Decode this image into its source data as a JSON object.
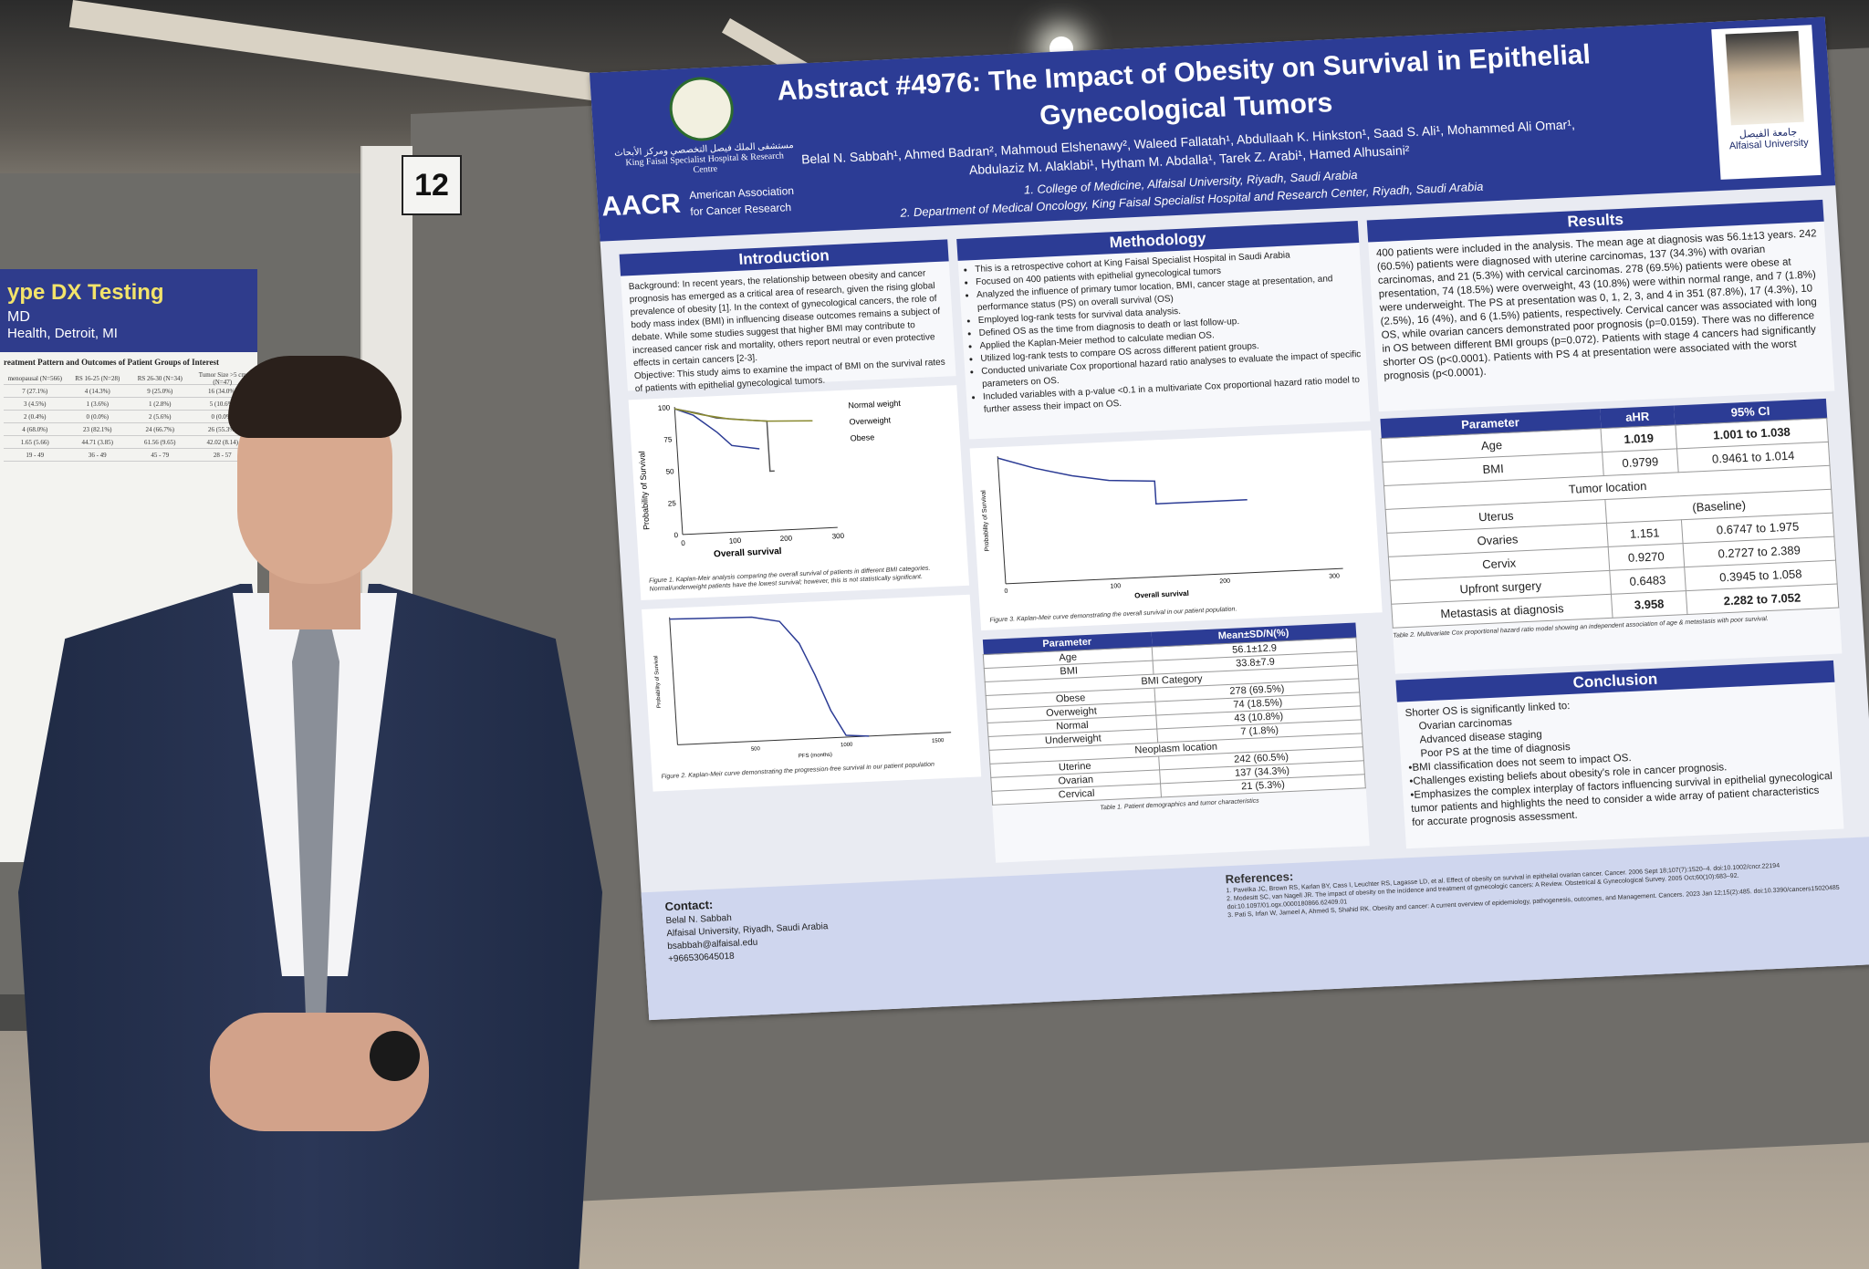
{
  "booth_number": "12",
  "left_poster": {
    "title": "ype DX Testing",
    "line1": "MD",
    "line2": "Health, Detroit, MI",
    "table_title": "reatment Pattern and Outcomes of Patient Groups of Interest",
    "headers": [
      "menopausal (N=566)",
      "RS 16-25 (N=28)",
      "RS 26-30 (N=34)",
      "Tumor Size >5 cm (N=47)"
    ],
    "rows": [
      [
        "7 (27.1%)",
        "4 (14.3%)",
        "9 (25.0%)",
        "16 (34.0%)"
      ],
      [
        "3 (4.5%)",
        "1 (3.6%)",
        "1 (2.8%)",
        "5 (10.6%)"
      ],
      [
        "2 (0.4%)",
        "0 (0.0%)",
        "2 (5.6%)",
        "0 (0.0%)"
      ],
      [
        "4 (68.0%)",
        "23 (82.1%)",
        "24 (66.7%)",
        "26 (55.3%)"
      ],
      [
        "1.65 (5.66)",
        "44.71 (3.85)",
        "61.56 (9.65)",
        "42.02 (8.14)"
      ],
      [
        "19 - 49",
        "36 - 49",
        "45 - 79",
        "28 - 57"
      ]
    ]
  },
  "poster": {
    "title": "Abstract #4976: The Impact of Obesity on Survival in Epithelial Gynecological Tumors",
    "authors": "Belal N. Sabbah¹, Ahmed Badran², Mahmoud Elshenawy², Waleed Fallatah¹, Abdullaah K. Hinkston¹, Saad S. Ali¹, Mohammed Ali Omar¹, Abdulaziz M. Alaklabi¹, Hytham M. Abdalla¹, Tarek Z. Arabi¹, Hamed Alhusaini²",
    "affiliation1": "1. College of Medicine, Alfaisal University, Riyadh, Saudi Arabia",
    "affiliation2": "2. Department of Medical Oncology, King Faisal Specialist Hospital and Research Center, Riyadh, Saudi Arabia",
    "logo_left_arabic": "مستشفى الملك فيصل التخصصي ومركز الأبحاث",
    "logo_left_english": "King Faisal Specialist Hospital & Research Centre",
    "aacr_mark": "AACR",
    "aacr_text1": "American Association",
    "aacr_text2": "for Cancer Research",
    "logo_right_arabic": "جامعة الفيصل",
    "logo_right_english": "Alfaisal University",
    "introduction": {
      "heading": "Introduction",
      "background": "Background: In recent years, the relationship between obesity and cancer prognosis has emerged as a critical area of research, given the rising global prevalence of obesity [1]. In the context of gynecological cancers, the role of body mass index (BMI) in influencing disease outcomes remains a subject of debate. While some studies suggest that higher BMI may contribute to increased cancer risk and mortality, others report neutral or even protective effects in certain cancers [2-3].",
      "objective": "Objective: This study aims to examine the impact of BMI on the survival rates of patients with epithelial gynecological tumors."
    },
    "methodology": {
      "heading": "Methodology",
      "items": [
        "This is a retrospective cohort at King Faisal Specialist Hospital in Saudi Arabia",
        "Focused on 400 patients with epithelial gynecological tumors",
        "Analyzed the influence of primary tumor location, BMI, cancer stage at presentation, and performance status (PS) on overall survival (OS)",
        "Employed log-rank tests for survival data analysis.",
        "Defined OS as the time from diagnosis to death or last follow-up.",
        "Applied the Kaplan-Meier method to calculate median OS.",
        "Utilized log-rank tests to compare OS across different patient groups.",
        "Conducted univariate Cox proportional hazard ratio analyses to evaluate the impact of specific parameters on OS.",
        "Included variables with a p-value <0.1 in a multivariate Cox proportional hazard ratio model to further assess their impact on OS."
      ]
    },
    "results": {
      "heading": "Results",
      "text": "400 patients were included in the analysis. The mean age at diagnosis was 56.1±13 years. 242 (60.5%) patients were diagnosed with uterine carcinomas, 137 (34.3%) with ovarian carcinomas, and 21 (5.3%) with cervical carcinomas. 278 (69.5%) patients were obese at presentation, 74 (18.5%) were overweight, 43 (10.8%) were within normal range, and 7 (1.8%) were underweight. The PS at presentation was 0, 1, 2, 3, and 4 in 351 (87.8%), 17 (4.3%), 10 (2.5%), 16 (4%), and 6 (1.5%) patients, respectively. Cervical cancer was associated with long OS, while ovarian cancers demonstrated poor prognosis (p=0.0159). There was no difference in OS between different BMI groups (p=0.072). Patients with stage 4 cancers had significantly shorter OS (p<0.0001). Patients with PS 4 at presentation were associated with the worst prognosis (p<0.0001)."
    },
    "fig1": {
      "ylabel": "Probability of Survival",
      "xlabel": "Overall survival",
      "yticks": [
        "0",
        "25",
        "50",
        "75",
        "100"
      ],
      "xticks": [
        "0",
        "100",
        "200",
        "300"
      ],
      "legend": [
        "Normal weight",
        "Overweight",
        "Obese"
      ],
      "caption": "Figure 1. Kaplan-Meir analysis comparing the overall survival of patients in different BMI categories. Normal/underweight patients have the lowest survival; however, this is not statistically significant."
    },
    "fig2": {
      "ylabel": "Probability of Survival",
      "xlabel": "PFS (months)",
      "xticks": [
        "500",
        "1000",
        "1500"
      ],
      "caption": "Figure 2. Kaplan-Meir curve demonstrating the progression-free survival in our patient population"
    },
    "fig3": {
      "ylabel": "Probability of Survival",
      "xlabel": "Overall survival",
      "xticks": [
        "0",
        "100",
        "200",
        "300"
      ],
      "caption": "Figure 3. Kaplan-Meir curve demonstrating the overall survival in our patient population."
    },
    "table1": {
      "headers": [
        "Parameter",
        "Mean±SD/N(%)"
      ],
      "rows": [
        [
          "Age",
          "56.1±12.9"
        ],
        [
          "BMI",
          "33.8±7.9"
        ],
        [
          "BMI Category",
          ""
        ],
        [
          "Obese",
          "278 (69.5%)"
        ],
        [
          "Overweight",
          "74 (18.5%)"
        ],
        [
          "Normal",
          "43 (10.8%)"
        ],
        [
          "Underweight",
          "7 (1.8%)"
        ],
        [
          "Neoplasm location",
          ""
        ],
        [
          "Uterine",
          "242 (60.5%)"
        ],
        [
          "Ovarian",
          "137 (34.3%)"
        ],
        [
          "Cervical",
          "21 (5.3%)"
        ]
      ],
      "caption": "Table 1. Patient demographics and tumor characteristics"
    },
    "table2": {
      "headers": [
        "Parameter",
        "aHR",
        "95% CI"
      ],
      "rows": [
        [
          "Age",
          "1.019",
          "1.001 to 1.038"
        ],
        [
          "BMI",
          "0.9799",
          "0.9461 to 1.014"
        ],
        [
          "Tumor location",
          "",
          ""
        ],
        [
          "Uterus",
          "(Baseline)",
          ""
        ],
        [
          "Ovaries",
          "1.151",
          "0.6747 to 1.975"
        ],
        [
          "Cervix",
          "0.9270",
          "0.2727 to 2.389"
        ],
        [
          "Upfront surgery",
          "0.6483",
          "0.3945 to 1.058"
        ],
        [
          "Metastasis at diagnosis",
          "3.958",
          "2.282 to 7.052"
        ]
      ],
      "caption": "Table 2. Multivariate Cox proportional hazard ratio model showing an independent association of age & metastasis with poor survival."
    },
    "conclusion": {
      "heading": "Conclusion",
      "intro": "Shorter OS is significantly linked to:",
      "sub": [
        "Ovarian carcinomas",
        "Advanced disease staging",
        "Poor PS at the time of diagnosis"
      ],
      "items": [
        "•BMI classification does not seem to impact OS.",
        "•Challenges existing beliefs about obesity's role in cancer prognosis.",
        "•Emphasizes the complex interplay of factors influencing survival in epithelial gynecological tumor patients and highlights the need to consider a wide array of patient characteristics for accurate prognosis assessment."
      ]
    },
    "contact": {
      "heading": "Contact:",
      "name": "Belal N. Sabbah",
      "org": "Alfaisal University, Riyadh, Saudi Arabia",
      "email": "bsabbah@alfaisal.edu",
      "phone": "+966530645018"
    },
    "references": {
      "heading": "References:",
      "items": [
        "1. Pavelka JC, Brown RS, Karlan BY, Cass I, Leuchter RS, Lagasse LD, et al. Effect of obesity on survival in epithelial ovarian cancer. Cancer. 2006 Sept 18;107(7):1520–4. doi:10.1002/cncr.22194",
        "2. Modesitt SC, van Nagell JR. The impact of obesity on the incidence and treatment of gynecologic cancers: A Review. Obstetrical & Gynecological Survey. 2005 Oct;60(10):683–92. doi:10.1097/01.ogx.0000180866.62409.01",
        "3. Pati S, Irfan W, Jameel A, Ahmed S, Shahid RK. Obesity and cancer: A current overview of epidemiology, pathogenesis, outcomes, and Management. Cancers. 2023 Jan 12;15(2):485. doi:10.3390/cancers15020485"
      ]
    }
  }
}
